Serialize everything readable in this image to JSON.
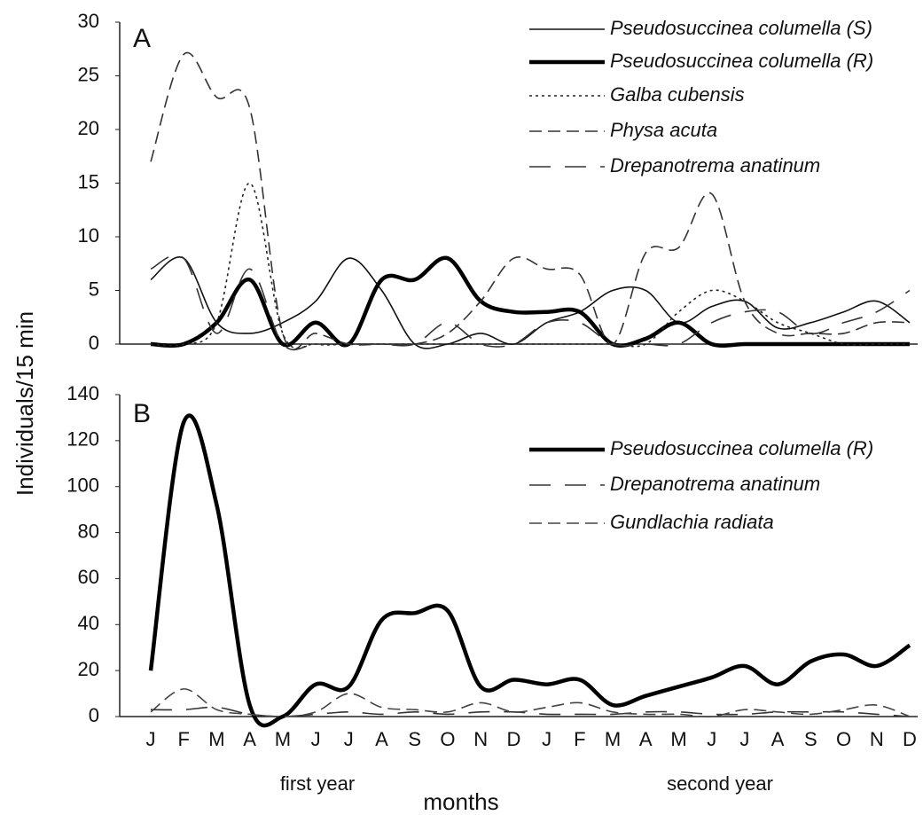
{
  "chart_data": [
    {
      "type": "line",
      "panel_label": "A",
      "ylim": [
        0,
        30
      ],
      "yticks": [
        0,
        5,
        10,
        15,
        20,
        25,
        30
      ],
      "series": [
        {
          "name": "Pseudosuccinea columella (S)",
          "color": "#111111",
          "linestyle": "solid",
          "linewidth": "thin",
          "values": [
            6,
            8,
            2,
            1,
            2,
            4,
            8,
            5,
            0,
            0,
            1,
            0,
            2,
            3,
            5,
            5,
            2,
            3.5,
            4,
            1.5,
            2,
            3,
            4,
            2
          ]
        },
        {
          "name": "Pseudosuccinea columella (R)",
          "color": "#000000",
          "linestyle": "solid",
          "linewidth": "thick",
          "values": [
            0,
            0,
            2,
            6,
            0,
            2,
            0,
            6,
            6,
            8,
            4,
            3,
            3,
            3,
            0,
            0.5,
            2,
            0,
            0,
            0,
            0,
            0,
            0,
            0
          ]
        },
        {
          "name": "Galba cubensis",
          "color": "#222222",
          "linestyle": "dotted",
          "linewidth": "thin",
          "values": [
            0,
            0,
            2,
            15,
            1,
            0,
            0,
            0,
            0,
            0,
            0,
            0,
            0,
            0,
            0,
            0,
            3,
            5,
            4,
            2,
            1,
            0,
            0,
            0
          ]
        },
        {
          "name": "Physa acuta",
          "color": "#333333",
          "linestyle": "dashed",
          "linewidth": "thin",
          "values": [
            17,
            27,
            23,
            22,
            1,
            1,
            0,
            0,
            0,
            1,
            4,
            8,
            7,
            6.5,
            0,
            8.5,
            9,
            14,
            4,
            1,
            1,
            1,
            2,
            2
          ]
        },
        {
          "name": "Drepanotrema anatinum",
          "color": "#333333",
          "linestyle": "long-dash",
          "linewidth": "thin",
          "values": [
            7,
            8,
            1,
            7,
            0,
            0,
            0,
            0,
            0,
            2,
            0,
            0,
            2,
            2,
            0,
            0,
            0,
            2,
            3,
            3,
            1,
            2,
            3,
            5
          ]
        }
      ]
    },
    {
      "type": "line",
      "panel_label": "B",
      "ylim": [
        0,
        140
      ],
      "yticks": [
        0,
        20,
        40,
        60,
        80,
        100,
        120,
        140
      ],
      "ylabel": "Individuals/15 min",
      "xlabel": "months",
      "x_groups": [
        "first year",
        "second year"
      ],
      "categories": [
        "J",
        "F",
        "M",
        "A",
        "M",
        "J",
        "J",
        "A",
        "S",
        "O",
        "N",
        "D",
        "J",
        "F",
        "M",
        "A",
        "M",
        "J",
        "J",
        "A",
        "S",
        "O",
        "N",
        "D"
      ],
      "series": [
        {
          "name": "Pseudosuccinea columella (R)",
          "color": "#000000",
          "linestyle": "solid",
          "linewidth": "thick",
          "values": [
            20,
            128,
            92,
            5,
            0,
            14,
            13,
            42,
            45,
            46,
            13,
            16,
            14,
            16,
            5,
            9,
            13,
            17,
            22,
            14,
            24,
            27,
            22,
            31
          ]
        },
        {
          "name": "Drepanotrema anatinum",
          "color": "#333333",
          "linestyle": "long-dash",
          "linewidth": "thin",
          "values": [
            3,
            3,
            4,
            1,
            0,
            1,
            2,
            1,
            2,
            1,
            2,
            2,
            1,
            1,
            1,
            2,
            2,
            1,
            1,
            2,
            2,
            2,
            1,
            0
          ]
        },
        {
          "name": "Gundlachia radiata",
          "color": "#444444",
          "linestyle": "dashed",
          "linewidth": "thin",
          "values": [
            2,
            12,
            3,
            1,
            0,
            2,
            10,
            4,
            3,
            2,
            6,
            2,
            4,
            6,
            2,
            1,
            1,
            0,
            3,
            2,
            1,
            3,
            5,
            0
          ]
        }
      ]
    }
  ]
}
